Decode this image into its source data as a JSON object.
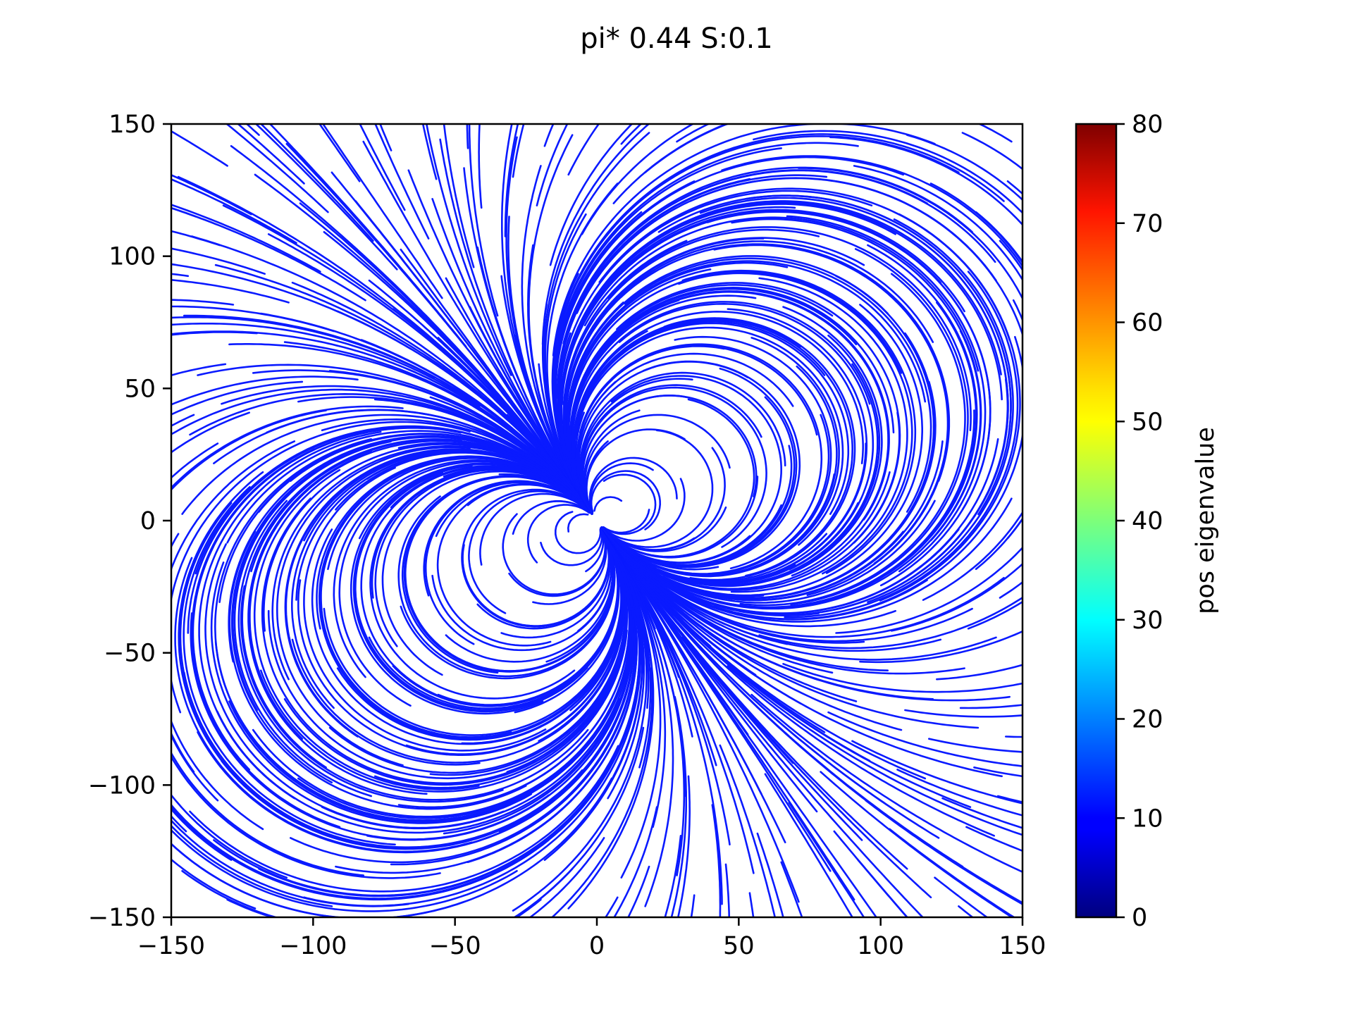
{
  "chart_data": {
    "type": "streamplot",
    "title": "pi* 0.44 S:0.1",
    "xlabel": "",
    "ylabel": "",
    "xlim": [
      -150,
      150
    ],
    "ylim": [
      -150,
      150
    ],
    "x_ticks": [
      -150,
      -100,
      -50,
      0,
      50,
      100,
      150
    ],
    "y_ticks": [
      -150,
      -100,
      -50,
      0,
      50,
      100,
      150
    ],
    "x_tick_labels": [
      "−150",
      "−100",
      "−50",
      "0",
      "50",
      "100",
      "150"
    ],
    "y_tick_labels": [
      "−150",
      "−100",
      "−50",
      "0",
      "50",
      "100",
      "150"
    ],
    "grid": false,
    "stream_color": "#0a1aff",
    "field": {
      "description_kind": "dipole-like flow centered at origin",
      "singular_point": [
        0,
        0
      ],
      "line_color_value_range": [
        8,
        14
      ]
    },
    "colorbar": {
      "label": "pos eigenvalue",
      "colormap": "jet",
      "range": [
        0,
        80
      ],
      "ticks": [
        0,
        10,
        20,
        30,
        40,
        50,
        60,
        70,
        80
      ],
      "tick_labels": [
        "0",
        "10",
        "20",
        "30",
        "40",
        "50",
        "60",
        "70",
        "80"
      ]
    }
  }
}
